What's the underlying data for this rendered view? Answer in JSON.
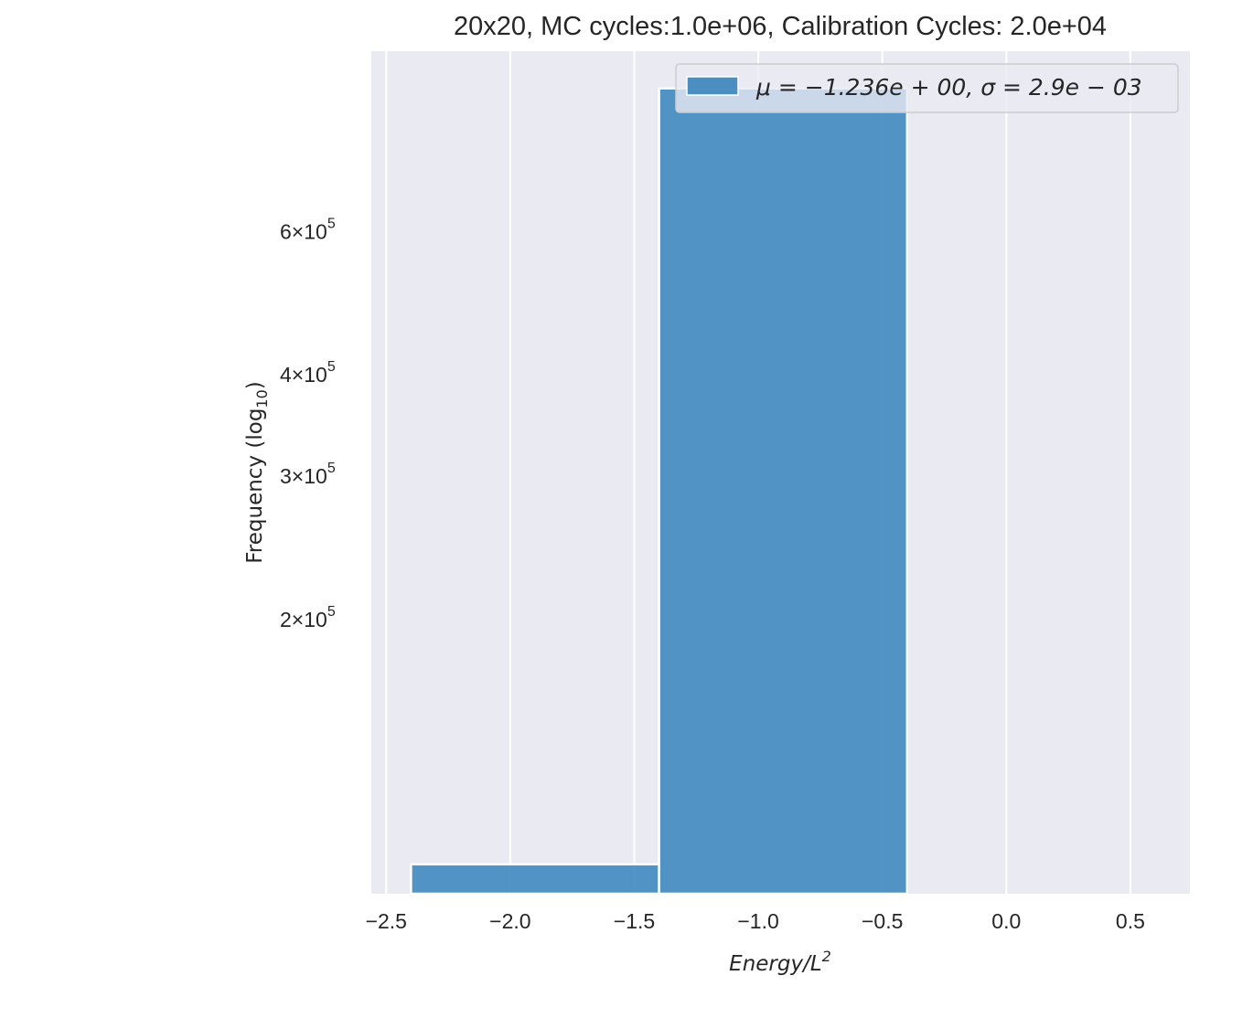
{
  "chart_data": {
    "type": "bar",
    "title": "20x20, MC cycles:1.0e+06, Calibration Cycles: 2.0e+04",
    "xlabel": {
      "var": "Energy/L",
      "sup": "2"
    },
    "ylabel": {
      "text": "Frequency (log",
      "sub": "10",
      "tail": ")"
    },
    "yscale": "log",
    "xlim": [
      -2.56,
      0.74
    ],
    "ylim": [
      92000,
      1000000
    ],
    "grid": "x-only",
    "legend_position": "top-right",
    "x_ticks": [
      {
        "value": -2.5,
        "label": "−2.5"
      },
      {
        "value": -2.0,
        "label": "−2.0"
      },
      {
        "value": -1.5,
        "label": "−1.5"
      },
      {
        "value": -1.0,
        "label": "−1.0"
      },
      {
        "value": -0.5,
        "label": "−0.5"
      },
      {
        "value": 0.0,
        "label": "0.0"
      },
      {
        "value": 0.5,
        "label": "0.5"
      }
    ],
    "y_ticks": [
      {
        "value": 600000,
        "mant": "6",
        "exp": "5"
      },
      {
        "value": 400000,
        "mant": "4",
        "exp": "5"
      },
      {
        "value": 300000,
        "mant": "3",
        "exp": "5"
      },
      {
        "value": 200000,
        "mant": "2",
        "exp": "5"
      }
    ],
    "bins": [
      {
        "x0": -2.4,
        "x1": -1.4,
        "value": 100000
      },
      {
        "x0": -1.4,
        "x1": -0.4,
        "value": 900000
      }
    ],
    "series": [
      {
        "name": "μ = −1.236e + 00, σ = 2.9e − 03",
        "color": "#4a8ec2"
      }
    ],
    "colors": {
      "background": "#eaeaf2",
      "grid": "#ffffff",
      "bar": "#4a8ec2",
      "text": "#262626"
    }
  }
}
